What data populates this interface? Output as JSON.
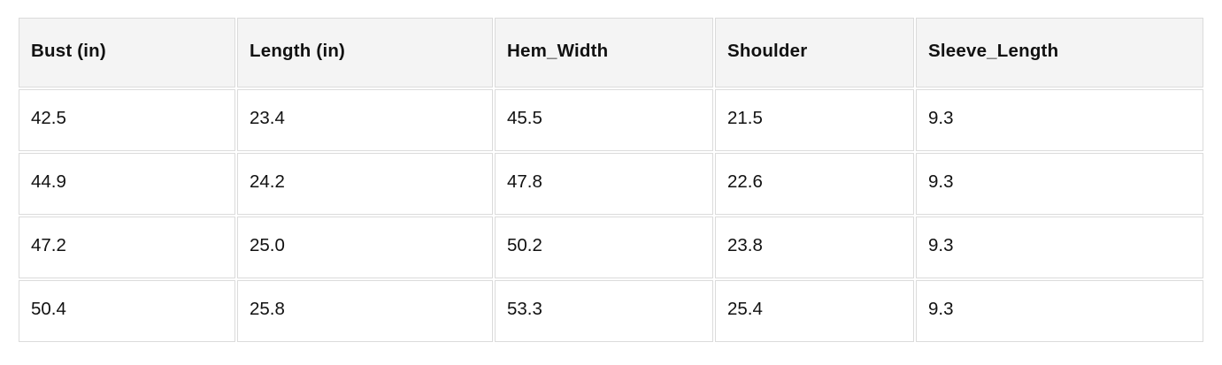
{
  "chart_data": {
    "type": "table",
    "title": "",
    "columns": [
      "Bust (in)",
      "Length (in)",
      "Hem_Width",
      "Shoulder",
      "Sleeve_Length"
    ],
    "rows": [
      [
        "42.5",
        "23.4",
        "45.5",
        "21.5",
        "9.3"
      ],
      [
        "44.9",
        "24.2",
        "47.8",
        "22.6",
        "9.3"
      ],
      [
        "47.2",
        "25.0",
        "50.2",
        "23.8",
        "9.3"
      ],
      [
        "50.4",
        "25.8",
        "53.3",
        "25.4",
        "9.3"
      ]
    ],
    "layout": {
      "header_position": "top",
      "grid": "all-cell-borders",
      "row_count": 4,
      "column_count": 5
    }
  },
  "colors": {
    "header_background": "#f4f4f4",
    "cell_background": "#ffffff",
    "border": "#dbdbdb",
    "text": "#111111",
    "page_background": "#ffffff"
  }
}
